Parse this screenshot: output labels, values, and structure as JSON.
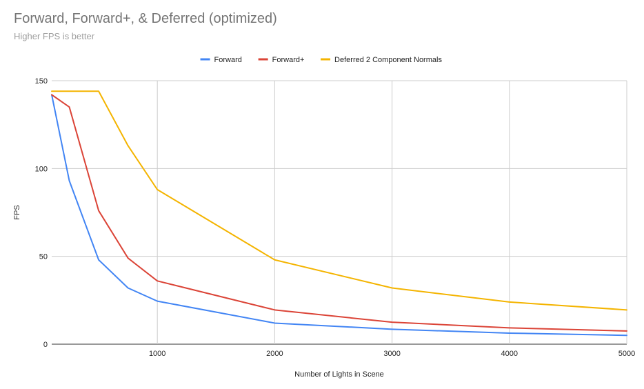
{
  "chart_data": {
    "type": "line",
    "title": "Forward, Forward+, & Deferred (optimized)",
    "subtitle": "Higher FPS is better",
    "xlabel": "Number of Lights in Scene",
    "ylabel": "FPS",
    "xlim": [
      100,
      5000
    ],
    "ylim": [
      0,
      150
    ],
    "xticks": [
      1000,
      2000,
      3000,
      4000,
      5000
    ],
    "yticks": [
      0,
      50,
      100,
      150
    ],
    "grid": true,
    "legend_position": "top",
    "x": [
      100,
      250,
      500,
      750,
      1000,
      2000,
      3000,
      4000,
      5000
    ],
    "series": [
      {
        "name": "Forward",
        "color": "#4285f4",
        "values": [
          142,
          93,
          48,
          32,
          24.5,
          12,
          8.5,
          6.3,
          5
        ]
      },
      {
        "name": "Forward+",
        "color": "#db4437",
        "values": [
          142,
          135,
          76,
          49,
          36,
          19.5,
          12.5,
          9.3,
          7.5
        ]
      },
      {
        "name": "Deferred 2 Component Normals",
        "color": "#f4b400",
        "values": [
          144,
          144,
          144,
          113,
          88,
          48,
          32,
          24,
          19.5
        ]
      }
    ]
  }
}
